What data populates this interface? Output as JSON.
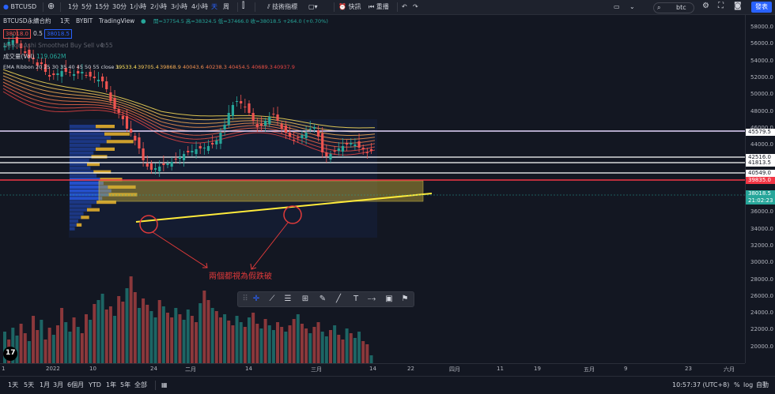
{
  "topbar": {
    "symbol": "BTCUSD",
    "intervals": [
      "1分",
      "5分",
      "15分",
      "30分",
      "1小時",
      "2小時",
      "3小時",
      "4小時",
      "天",
      "周"
    ],
    "active_interval": "天",
    "indicators_label": "技術指標",
    "snapshot_label": "快訊",
    "replay_label": "重播",
    "search_value": "btc",
    "publish_label": "發表"
  },
  "legend": {
    "title": "BTCUSD永續合約",
    "interval": "1天",
    "exchange": "BYBIT",
    "source": "TradingView",
    "ohlc": "開=37754.5 高=38324.5 低=37466.0 收=38018.5 +264.0 (+0.70%)",
    "bid": "38018.0",
    "spread": "0.5",
    "ask": "38018.5",
    "heikin": "Heikin Ashi Smoothed Buy Sell v4 55",
    "volume_label": "成交量(Vol)",
    "volume_value": "119.062M",
    "ema_label": "EMA Ribbon 20 25 30 35 40 45 50 55 close 1",
    "ema_values": [
      "39533.4",
      "39705.4",
      "39868.9",
      "40043.6",
      "40238.3",
      "40454.5",
      "40689.3",
      "40937.9"
    ]
  },
  "price_axis": [
    "58000.0",
    "56000.0",
    "54000.0",
    "52000.0",
    "50000.0",
    "48000.0",
    "46000.0",
    "44000.0",
    "42000.0",
    "40000.0",
    "38000.0",
    "36000.0",
    "34000.0",
    "32000.0",
    "30000.0",
    "28000.0",
    "26000.0",
    "24000.0",
    "22000.0",
    "20000.0"
  ],
  "price_labels": [
    {
      "text": "45579.5",
      "bg": "#ffffff",
      "fg": "#131722"
    },
    {
      "text": "42516.0",
      "bg": "#ffffff",
      "fg": "#131722"
    },
    {
      "text": "41813.5",
      "bg": "#ffffff",
      "fg": "#131722"
    },
    {
      "text": "40549.0",
      "bg": "#ffffff",
      "fg": "#131722"
    },
    {
      "text": "39835.0",
      "bg": "#f23645",
      "fg": "#ffffff"
    },
    {
      "text": "38018.5",
      "bg": "#26a69a",
      "fg": "#ffffff"
    },
    {
      "text": "21:02:23",
      "bg": "#26a69a",
      "fg": "#ffffff"
    }
  ],
  "time_axis": [
    "1",
    "2022",
    "10",
    "24",
    "二月",
    "14",
    "三月",
    "14",
    "22",
    "四月",
    "11",
    "19",
    "五月",
    "9",
    "23",
    "六月"
  ],
  "annotation": "兩個都視為假跌破",
  "bottombar": {
    "ranges": [
      "1天",
      "5天",
      "1月",
      "3月",
      "6個月",
      "YTD",
      "1年",
      "5年",
      "全部"
    ],
    "clock": "10:57:37 (UTC+8)",
    "percent": "%",
    "log": "log",
    "auto": "自動"
  },
  "colors": {
    "accent": "#2962ff",
    "up": "#26a69a",
    "down": "#ef5350",
    "trendline": "#ffeb3b",
    "zone": "#c9b037"
  }
}
